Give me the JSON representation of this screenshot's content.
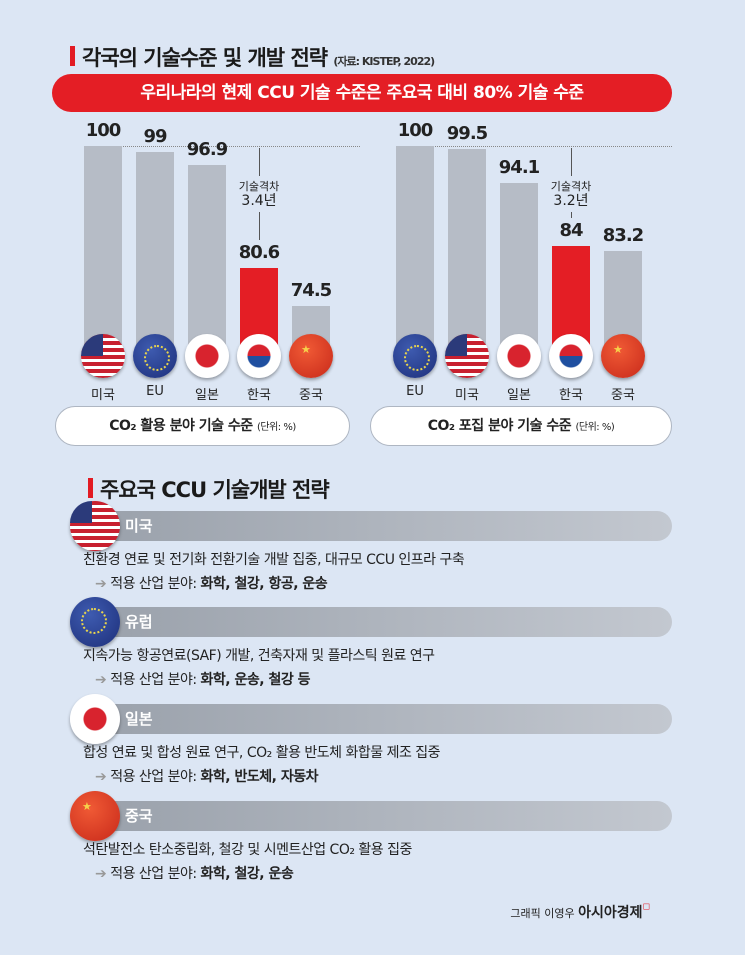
{
  "header": {
    "title": "각국의 기술수준 및 개발 전략",
    "source": "(자료: KISTEP, 2022)",
    "banner": "우리나라의 현제 CCU 기술 수준은 주요국 대비 80% 기술 수준"
  },
  "chart_data": [
    {
      "type": "bar",
      "title": "CO₂ 활용 분야 기술 수준",
      "unit": "(단위: %)",
      "categories": [
        "미국",
        "EU",
        "일본",
        "한국",
        "중국"
      ],
      "flags": [
        "us",
        "eu",
        "jp",
        "kr",
        "cn"
      ],
      "values": [
        100,
        99,
        96.9,
        80.6,
        74.5
      ],
      "highlight": "한국",
      "annotation": {
        "label": "기술격차",
        "value": "3.4년"
      }
    },
    {
      "type": "bar",
      "title": "CO₂ 포집 분야 기술 수준",
      "unit": "(단위: %)",
      "categories": [
        "EU",
        "미국",
        "일본",
        "한국",
        "중국"
      ],
      "flags": [
        "eu",
        "us",
        "jp",
        "kr",
        "cn"
      ],
      "values": [
        100,
        99.5,
        94.1,
        84,
        83.2
      ],
      "highlight": "한국",
      "annotation": {
        "label": "기술격차",
        "value": "3.2년"
      }
    }
  ],
  "strategy": {
    "title": "주요국 CCU 기술개발 전략",
    "items": [
      {
        "country": "미국",
        "flag": "us",
        "desc": "친환경 연료 및 전기화 전환기술 개발 집중, 대규모 CCU 인프라 구축",
        "prefix": "적용 산업 분야:",
        "industries": "화학, 철강, 항공, 운송"
      },
      {
        "country": "유럽",
        "flag": "eu",
        "desc": "지속가능 항공연료(SAF) 개발, 건축자재 및 플라스틱 원료 연구",
        "prefix": "적용 산업 분야:",
        "industries": "화학, 운송, 철강 등"
      },
      {
        "country": "일본",
        "flag": "jp",
        "desc": "합성 연료 및 합성 원료 연구, CO₂ 활용 반도체 화합물 제조 집중",
        "prefix": "적용 산업 분야:",
        "industries": "화학, 반도체, 자동차"
      },
      {
        "country": "중국",
        "flag": "cn",
        "desc": "석탄발전소 탄소중립화, 철강 및 시멘트산업 CO₂ 활용 집중",
        "prefix": "적용 산업 분야:",
        "industries": "화학, 철강, 운송"
      }
    ]
  },
  "credit": {
    "author": "그래픽 이영우",
    "brand": "아시아경제"
  },
  "colors": {
    "accent": "#e41e25",
    "bar": "#b6bcc6",
    "background": "#dce6f4"
  }
}
